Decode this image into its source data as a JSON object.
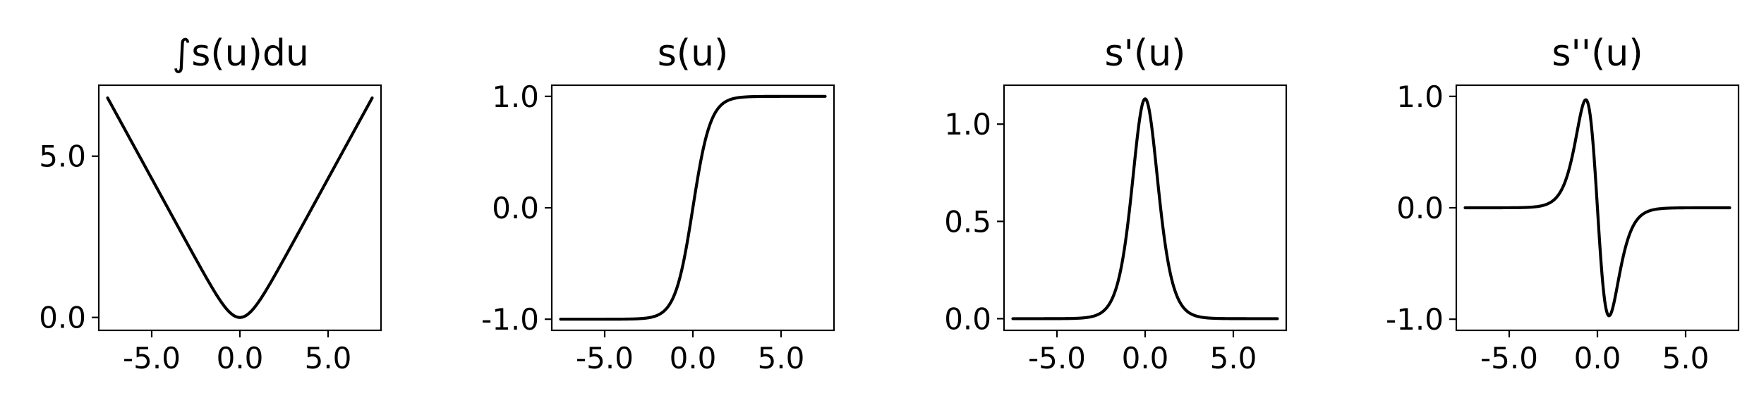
{
  "chart_data": [
    {
      "type": "line",
      "title": "∫s(u)du",
      "function": "integral_tanh",
      "x_range": [
        -7.5,
        7.5
      ],
      "xlim": [
        -8.0,
        8.0
      ],
      "ylim": [
        -0.4,
        7.2
      ],
      "xticks": [
        -5.0,
        0.0,
        5.0
      ],
      "xtick_labels": [
        "-5.0",
        "0.0",
        "5.0"
      ],
      "yticks": [
        0.0,
        5.0
      ],
      "ytick_labels": [
        "0.0",
        "5.0"
      ],
      "grid": false,
      "line_color": "#000000"
    },
    {
      "type": "line",
      "title": "s(u)",
      "function": "tanh",
      "x_range": [
        -7.5,
        7.5
      ],
      "xlim": [
        -8.0,
        8.0
      ],
      "ylim": [
        -1.1,
        1.1
      ],
      "xticks": [
        -5.0,
        0.0,
        5.0
      ],
      "xtick_labels": [
        "-5.0",
        "0.0",
        "5.0"
      ],
      "yticks": [
        1.0,
        0.0,
        -1.0
      ],
      "ytick_labels": [
        "1.0",
        "0.0",
        "-1.0"
      ],
      "grid": false,
      "line_color": "#000000"
    },
    {
      "type": "line",
      "title": "s'(u)",
      "function": "tanh_first_derivative",
      "x_range": [
        -7.5,
        7.5
      ],
      "xlim": [
        -8.0,
        8.0
      ],
      "ylim": [
        -0.06,
        1.2
      ],
      "xticks": [
        -5.0,
        0.0,
        5.0
      ],
      "xtick_labels": [
        "-5.0",
        "0.0",
        "5.0"
      ],
      "yticks": [
        1.0,
        0.5,
        0.0
      ],
      "ytick_labels": [
        "1.0",
        "0.5",
        "0.0"
      ],
      "grid": false,
      "line_color": "#000000"
    },
    {
      "type": "line",
      "title": "s''(u)",
      "function": "tanh_second_derivative",
      "x_range": [
        -7.5,
        7.5
      ],
      "xlim": [
        -8.0,
        8.0
      ],
      "ylim": [
        -1.1,
        1.1
      ],
      "xticks": [
        -5.0,
        0.0,
        5.0
      ],
      "xtick_labels": [
        "-5.0",
        "0.0",
        "5.0"
      ],
      "yticks": [
        1.0,
        0.0,
        -1.0
      ],
      "ytick_labels": [
        "1.0",
        "0.0",
        "-1.0"
      ],
      "grid": false,
      "line_color": "#000000"
    }
  ]
}
